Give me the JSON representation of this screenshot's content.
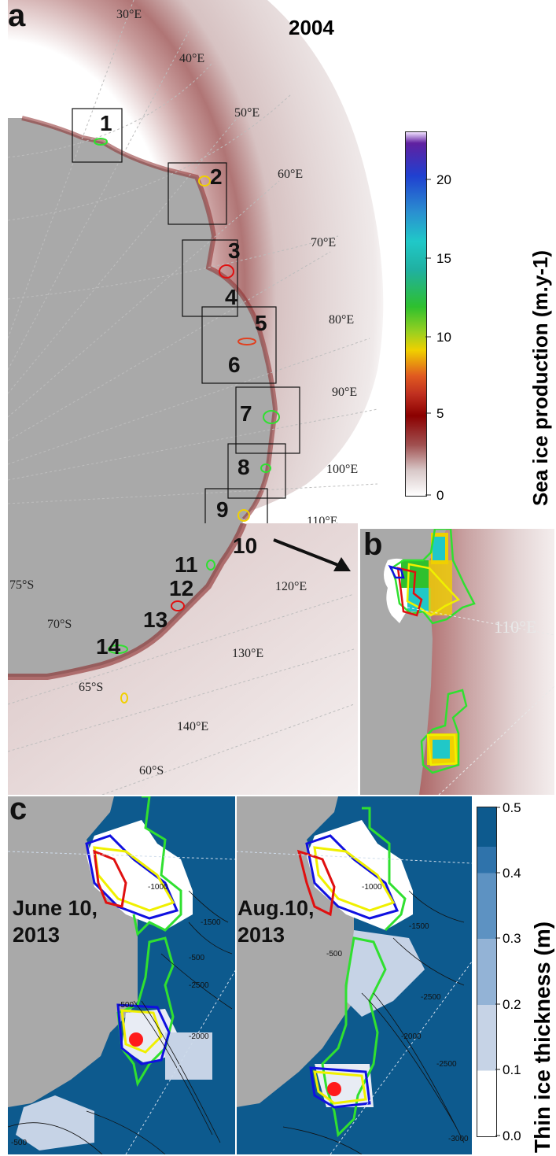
{
  "panel_a": {
    "letter": "a",
    "year": "2004",
    "longitudes": [
      "30°E",
      "40°E",
      "50°E",
      "60°E",
      "70°E",
      "80°E",
      "90°E",
      "100°E",
      "110°E",
      "120°E",
      "130°E",
      "140°E"
    ],
    "latitudes": [
      "75°S",
      "70°S",
      "65°S",
      "60°S"
    ],
    "regions": [
      "1",
      "2",
      "3",
      "4",
      "5",
      "6",
      "7",
      "8",
      "9",
      "10",
      "11",
      "12",
      "13",
      "14"
    ]
  },
  "colorbar_a": {
    "title": "Sea ice production (m.y-1)",
    "ticks": [
      "0",
      "5",
      "10",
      "15",
      "20"
    ],
    "colors": [
      "#ffffff",
      "#d8c8c8",
      "#a05050",
      "#8b0000",
      "#e04020",
      "#f0d000",
      "#2ec02e",
      "#20c8c8",
      "#2040d0",
      "#6020a0"
    ]
  },
  "panel_b": {
    "letter": "b",
    "longitude": "110°E"
  },
  "panel_c": {
    "letter": "c",
    "dates": [
      {
        "line1": "June 10,",
        "line2": "2013"
      },
      {
        "line1": "Aug.10,",
        "line2": "2013"
      }
    ],
    "contours_left": [
      "-1000",
      "-500",
      "-1500",
      "-500",
      "-2500",
      "-2000",
      "-500"
    ],
    "contours_right": [
      "-1000",
      "-1500",
      "-500",
      "-2500",
      "-2000",
      "-2500",
      "-3000"
    ]
  },
  "colorbar_c": {
    "title": "Thin ice thickness (m)",
    "ticks": [
      "0.0",
      "0.1",
      "0.2",
      "0.3",
      "0.4",
      "0.5"
    ],
    "colors": [
      "#ffffff",
      "#c6d3e6",
      "#93b3d6",
      "#5d92c2",
      "#2f73ab",
      "#0d5a8e"
    ]
  },
  "colors": {
    "land": "#a9a9a9",
    "ocean_c": "#0d5a8e",
    "polynya_red": "#e01010",
    "polynya_blue": "#1010e0",
    "polynya_yellow": "#f0f000",
    "polynya_green": "#30e030",
    "station": "#ff1a1a"
  }
}
